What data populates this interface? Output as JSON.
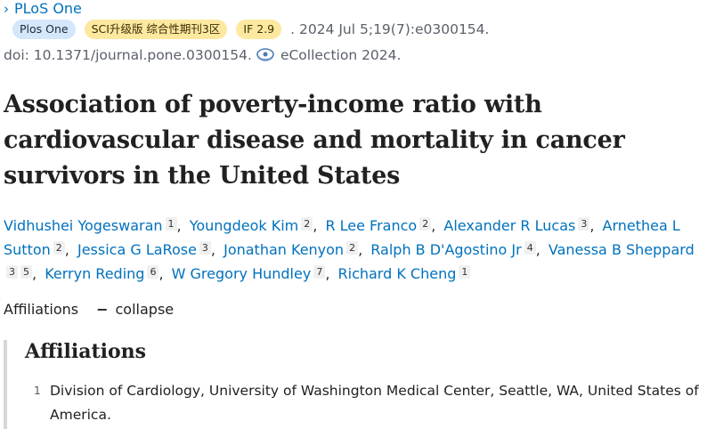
{
  "journal": {
    "chevron": "›",
    "name": "PLoS One"
  },
  "badges": {
    "journal": "Plos One",
    "category": "SCI升级版 综合性期刊3区",
    "impact": "IF 2.9"
  },
  "citation": {
    "date": ". 2024 Jul 5;19(7):e0300154.",
    "doi": "doi: 10.1371/journal.pone.0300154.",
    "ecollection": "eCollection 2024."
  },
  "title": "Association of poverty-income ratio with cardiovascular disease and mortality in cancer survivors in the United States",
  "authors": [
    {
      "name": "Vidhushei Yogeswaran",
      "aff": "1"
    },
    {
      "name": "Youngdeok Kim",
      "aff": "2"
    },
    {
      "name": "R Lee Franco",
      "aff": "2"
    },
    {
      "name": "Alexander R Lucas",
      "aff": "3"
    },
    {
      "name": "Arnethea L Sutton",
      "aff": "2"
    },
    {
      "name": "Jessica G LaRose",
      "aff": "3"
    },
    {
      "name": "Jonathan Kenyon",
      "aff": "2"
    },
    {
      "name": "Ralph B D'Agostino Jr",
      "aff": "4"
    },
    {
      "name": "Vanessa B Sheppard",
      "aff": "3",
      "aff2": "5"
    },
    {
      "name": "Kerryn Reding",
      "aff": "6"
    },
    {
      "name": "W Gregory Hundley",
      "aff": "7"
    },
    {
      "name": "Richard K Cheng",
      "aff": "1"
    }
  ],
  "affiliations_toggle": {
    "label": "Affiliations",
    "action": "collapse"
  },
  "affiliations": {
    "heading": "Affiliations",
    "items": [
      {
        "num": "1",
        "text": "Division of Cardiology, University of Washington Medical Center, Seattle, WA, United States of America."
      }
    ]
  }
}
